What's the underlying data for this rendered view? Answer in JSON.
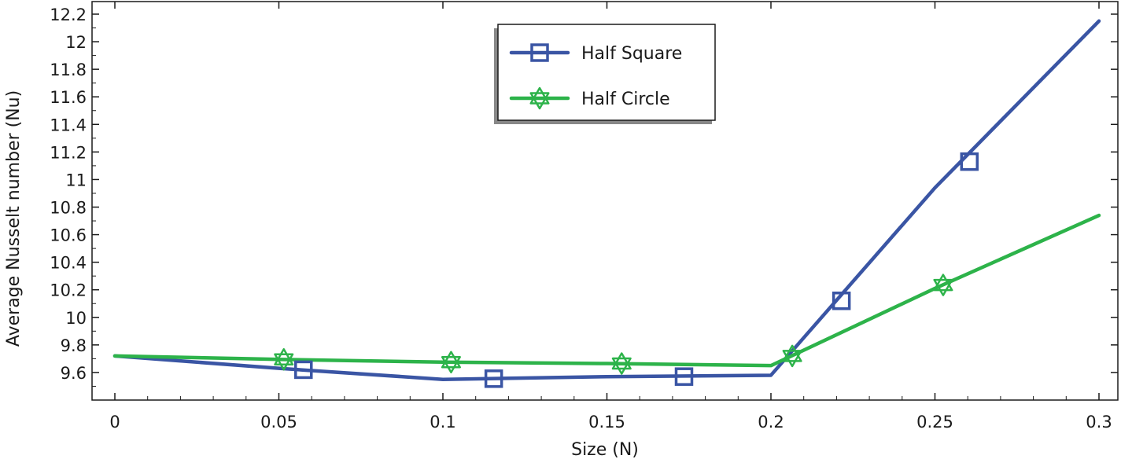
{
  "chart_data": {
    "type": "line",
    "title": "",
    "xlabel": "Size (N)",
    "ylabel": "Average Nusselt number (Nu)",
    "xlim": [
      0,
      0.3
    ],
    "ylim": [
      9.4,
      12.2
    ],
    "x_ticks": [
      "0",
      "0.05",
      "0.1",
      "0.15",
      "0.2",
      "0.25",
      "0.3"
    ],
    "y_ticks": [
      "9.6",
      "9.8",
      "10",
      "10.2",
      "10.4",
      "10.6",
      "10.8",
      "11",
      "11.2",
      "11.4",
      "11.6",
      "11.8",
      "12",
      "12.2"
    ],
    "grid": false,
    "legend_position": "top-center",
    "series": [
      {
        "name": "Half Square",
        "color": "#3a55a4",
        "marker": "square",
        "x": [
          0,
          0.05,
          0.1,
          0.15,
          0.2,
          0.25,
          0.3
        ],
        "y": [
          9.72,
          9.63,
          9.55,
          9.57,
          9.58,
          10.94,
          12.15
        ],
        "marker_x": [
          0.0575,
          0.1155,
          0.1735,
          0.2215,
          0.2605
        ],
        "marker_y": [
          9.62,
          9.555,
          9.57,
          10.12,
          11.13
        ]
      },
      {
        "name": "Half Circle",
        "color": "#2db34a",
        "marker": "hexagram",
        "x": [
          0,
          0.05,
          0.1,
          0.15,
          0.2,
          0.25,
          0.3
        ],
        "y": [
          9.72,
          9.695,
          9.675,
          9.665,
          9.65,
          10.21,
          10.74
        ],
        "marker_x": [
          0.0515,
          0.1025,
          0.1545,
          0.2065,
          0.2525
        ],
        "marker_y": [
          9.695,
          9.675,
          9.665,
          9.72,
          10.235
        ]
      }
    ]
  }
}
